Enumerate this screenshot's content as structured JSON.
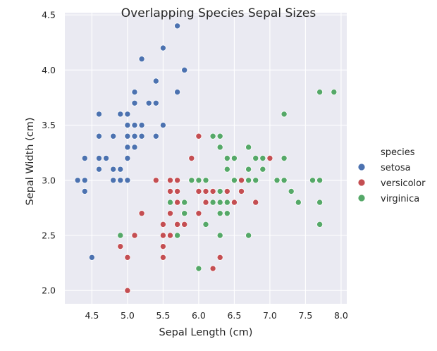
{
  "chart_data": {
    "type": "scatter",
    "title": "Overlapping Species Sepal Sizes",
    "xlabel": "Sepal Length (cm)",
    "ylabel": "Sepal Width (cm)",
    "xlim": [
      4.12,
      8.08
    ],
    "ylim": [
      1.88,
      4.52
    ],
    "xticks": [
      "4.5",
      "5.0",
      "5.5",
      "6.0",
      "6.5",
      "7.0",
      "7.5",
      "8.0"
    ],
    "yticks": [
      "2.0",
      "2.5",
      "3.0",
      "3.5",
      "4.0",
      "4.5"
    ],
    "grid": true,
    "background": "#eaeaf2",
    "legend": {
      "title": "species",
      "placement": "right"
    },
    "series": [
      {
        "name": "setosa",
        "color": "#4c72b0",
        "points": [
          [
            5.1,
            3.5
          ],
          [
            4.9,
            3.0
          ],
          [
            4.7,
            3.2
          ],
          [
            4.6,
            3.1
          ],
          [
            5.0,
            3.6
          ],
          [
            5.4,
            3.9
          ],
          [
            4.6,
            3.4
          ],
          [
            5.0,
            3.4
          ],
          [
            4.4,
            2.9
          ],
          [
            4.9,
            3.1
          ],
          [
            5.4,
            3.7
          ],
          [
            4.8,
            3.4
          ],
          [
            4.8,
            3.0
          ],
          [
            4.3,
            3.0
          ],
          [
            5.8,
            4.0
          ],
          [
            5.7,
            4.4
          ],
          [
            5.4,
            3.9
          ],
          [
            5.1,
            3.5
          ],
          [
            5.7,
            3.8
          ],
          [
            5.1,
            3.8
          ],
          [
            5.4,
            3.4
          ],
          [
            5.1,
            3.7
          ],
          [
            4.6,
            3.6
          ],
          [
            5.1,
            3.3
          ],
          [
            4.8,
            3.4
          ],
          [
            5.0,
            3.0
          ],
          [
            5.0,
            3.4
          ],
          [
            5.2,
            3.5
          ],
          [
            5.2,
            3.4
          ],
          [
            4.7,
            3.2
          ],
          [
            4.8,
            3.1
          ],
          [
            5.4,
            3.4
          ],
          [
            5.2,
            4.1
          ],
          [
            5.5,
            4.2
          ],
          [
            4.9,
            3.1
          ],
          [
            5.0,
            3.2
          ],
          [
            5.5,
            3.5
          ],
          [
            4.9,
            3.6
          ],
          [
            4.4,
            3.0
          ],
          [
            5.1,
            3.4
          ],
          [
            5.0,
            3.5
          ],
          [
            4.5,
            2.3
          ],
          [
            4.4,
            3.2
          ],
          [
            5.0,
            3.5
          ],
          [
            5.1,
            3.8
          ],
          [
            4.8,
            3.0
          ],
          [
            5.1,
            3.8
          ],
          [
            4.6,
            3.2
          ],
          [
            5.3,
            3.7
          ],
          [
            5.0,
            3.3
          ]
        ]
      },
      {
        "name": "versicolor",
        "color": "#c44e52",
        "points": [
          [
            7.0,
            3.2
          ],
          [
            6.4,
            3.2
          ],
          [
            6.9,
            3.1
          ],
          [
            5.5,
            2.3
          ],
          [
            6.5,
            2.8
          ],
          [
            5.7,
            2.8
          ],
          [
            6.3,
            3.3
          ],
          [
            4.9,
            2.4
          ],
          [
            6.6,
            2.9
          ],
          [
            5.2,
            2.7
          ],
          [
            5.0,
            2.0
          ],
          [
            5.9,
            3.0
          ],
          [
            6.0,
            2.2
          ],
          [
            6.1,
            2.9
          ],
          [
            5.6,
            2.9
          ],
          [
            6.7,
            3.1
          ],
          [
            5.6,
            3.0
          ],
          [
            5.8,
            2.7
          ],
          [
            6.2,
            2.2
          ],
          [
            5.6,
            2.5
          ],
          [
            5.9,
            3.2
          ],
          [
            6.1,
            2.8
          ],
          [
            6.3,
            2.5
          ],
          [
            6.1,
            2.8
          ],
          [
            6.4,
            2.9
          ],
          [
            6.6,
            3.0
          ],
          [
            6.8,
            2.8
          ],
          [
            6.7,
            3.0
          ],
          [
            6.0,
            2.9
          ],
          [
            5.7,
            2.6
          ],
          [
            5.5,
            2.4
          ],
          [
            5.5,
            2.4
          ],
          [
            5.8,
            2.7
          ],
          [
            6.0,
            2.7
          ],
          [
            5.4,
            3.0
          ],
          [
            6.0,
            3.4
          ],
          [
            6.7,
            3.1
          ],
          [
            6.3,
            2.3
          ],
          [
            5.6,
            3.0
          ],
          [
            5.5,
            2.5
          ],
          [
            5.5,
            2.6
          ],
          [
            6.1,
            3.0
          ],
          [
            5.8,
            2.6
          ],
          [
            5.0,
            2.3
          ],
          [
            5.6,
            2.7
          ],
          [
            5.7,
            3.0
          ],
          [
            5.7,
            2.9
          ],
          [
            6.2,
            2.9
          ],
          [
            5.1,
            2.5
          ],
          [
            5.7,
            2.8
          ]
        ]
      },
      {
        "name": "virginica",
        "color": "#55a868",
        "points": [
          [
            6.3,
            3.3
          ],
          [
            5.8,
            2.7
          ],
          [
            7.1,
            3.0
          ],
          [
            6.3,
            2.9
          ],
          [
            6.5,
            3.0
          ],
          [
            7.6,
            3.0
          ],
          [
            4.9,
            2.5
          ],
          [
            7.3,
            2.9
          ],
          [
            6.7,
            2.5
          ],
          [
            7.2,
            3.6
          ],
          [
            6.5,
            3.2
          ],
          [
            6.4,
            2.7
          ],
          [
            6.8,
            3.0
          ],
          [
            5.7,
            2.5
          ],
          [
            5.8,
            2.8
          ],
          [
            6.4,
            3.2
          ],
          [
            6.5,
            3.0
          ],
          [
            7.7,
            3.8
          ],
          [
            7.7,
            2.6
          ],
          [
            6.0,
            2.2
          ],
          [
            6.9,
            3.2
          ],
          [
            5.6,
            2.8
          ],
          [
            7.7,
            2.8
          ],
          [
            6.3,
            2.7
          ],
          [
            6.7,
            3.3
          ],
          [
            7.2,
            3.2
          ],
          [
            6.2,
            2.8
          ],
          [
            6.1,
            3.0
          ],
          [
            6.4,
            2.8
          ],
          [
            7.2,
            3.0
          ],
          [
            7.4,
            2.8
          ],
          [
            7.9,
            3.8
          ],
          [
            6.4,
            2.8
          ],
          [
            6.3,
            2.8
          ],
          [
            6.1,
            2.6
          ],
          [
            7.7,
            3.0
          ],
          [
            6.3,
            3.4
          ],
          [
            6.4,
            3.1
          ],
          [
            6.0,
            3.0
          ],
          [
            6.9,
            3.1
          ],
          [
            6.7,
            3.1
          ],
          [
            6.9,
            3.1
          ],
          [
            5.8,
            2.7
          ],
          [
            6.8,
            3.2
          ],
          [
            6.7,
            3.3
          ],
          [
            6.7,
            3.0
          ],
          [
            6.3,
            2.5
          ],
          [
            6.5,
            3.0
          ],
          [
            6.2,
            3.4
          ],
          [
            5.9,
            3.0
          ]
        ]
      }
    ]
  }
}
